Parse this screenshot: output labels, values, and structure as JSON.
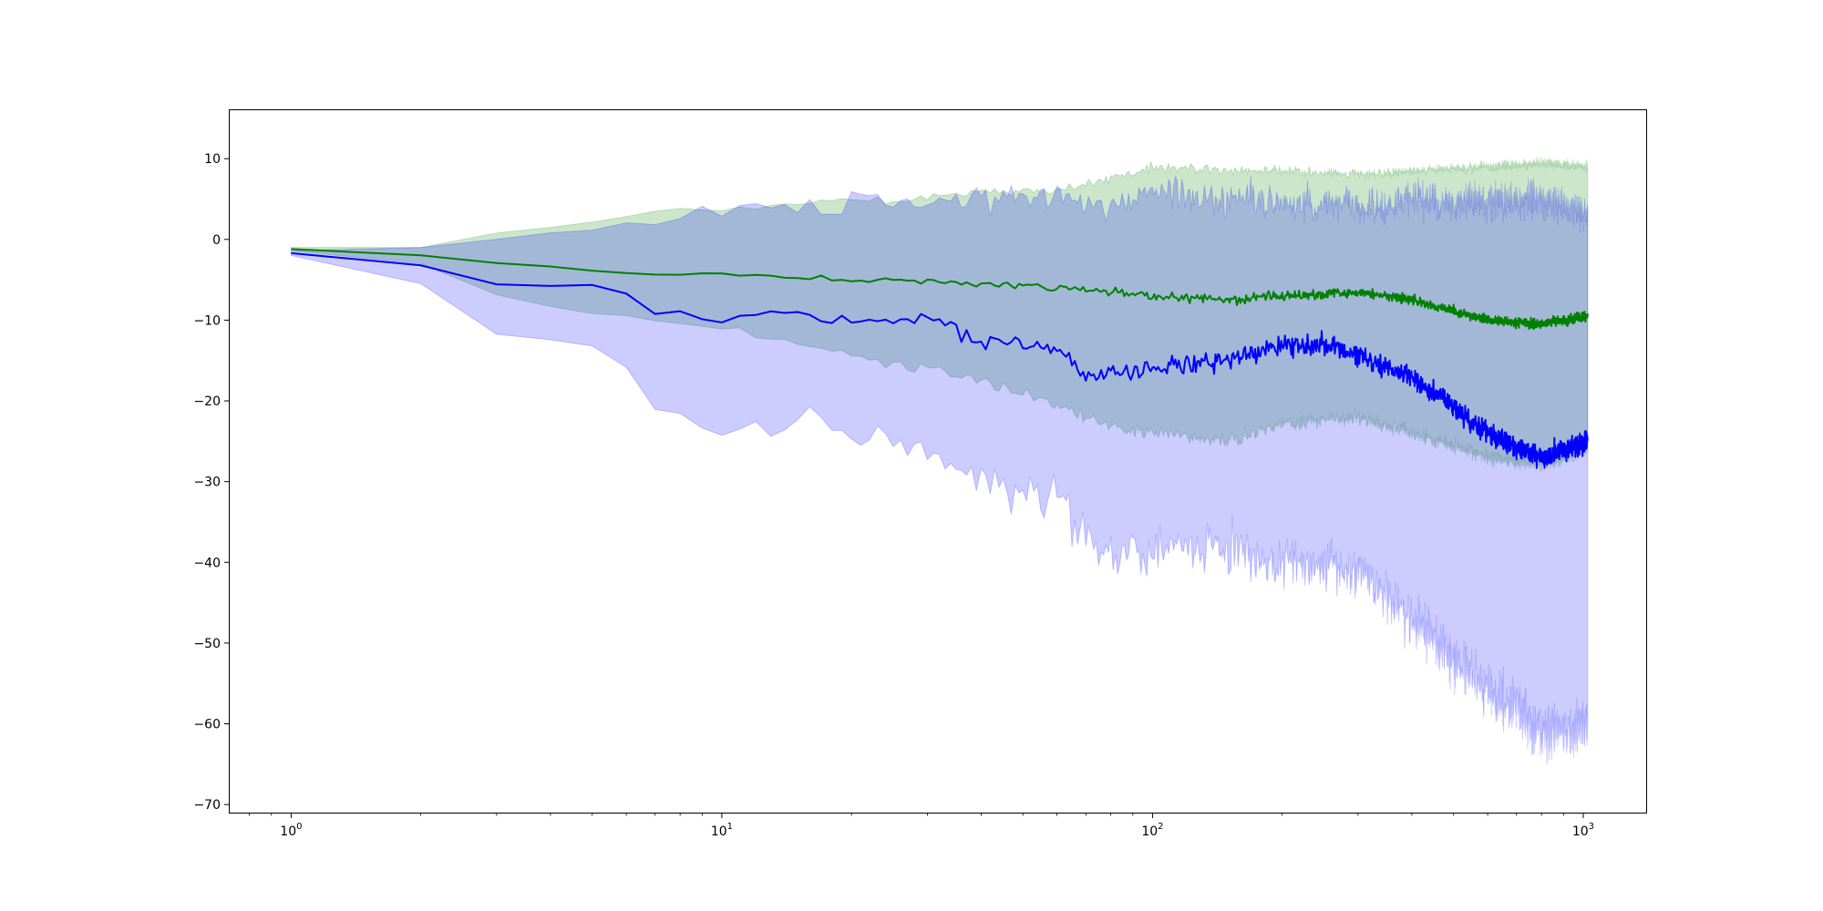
{
  "chart_data": {
    "type": "line",
    "title": "",
    "xlabel": "",
    "ylabel": "",
    "xscale": "log",
    "xlim": [
      0.72,
      1400
    ],
    "ylim": [
      -71,
      16
    ],
    "grid": false,
    "x_ticks": [
      {
        "value": 1,
        "base": "10",
        "exp": "0"
      },
      {
        "value": 10,
        "base": "10",
        "exp": "1"
      },
      {
        "value": 100,
        "base": "10",
        "exp": "2"
      },
      {
        "value": 1000,
        "base": "10",
        "exp": "3"
      }
    ],
    "y_ticks": [
      {
        "value": 10,
        "label": "10"
      },
      {
        "value": 0,
        "label": "0"
      },
      {
        "value": -10,
        "label": "−10"
      },
      {
        "value": -20,
        "label": "−20"
      },
      {
        "value": -30,
        "label": "−30"
      },
      {
        "value": -40,
        "label": "−40"
      },
      {
        "value": -50,
        "label": "−50"
      },
      {
        "value": -60,
        "label": "−60"
      },
      {
        "value": -70,
        "label": "−70"
      }
    ],
    "x_range": [
      1,
      1024
    ],
    "series": [
      {
        "color": "#008000",
        "band_color": "#008000",
        "band_opacity": 0.2,
        "mean_keypoints": [
          [
            1,
            -1.2
          ],
          [
            2,
            -2.0
          ],
          [
            3,
            -3.0
          ],
          [
            5,
            -3.9
          ],
          [
            8,
            -4.4
          ],
          [
            10,
            -4.3
          ],
          [
            15,
            -4.8
          ],
          [
            20,
            -5.0
          ],
          [
            30,
            -5.2
          ],
          [
            50,
            -5.8
          ],
          [
            80,
            -6.5
          ],
          [
            100,
            -7.0
          ],
          [
            150,
            -7.5
          ],
          [
            200,
            -7.0
          ],
          [
            300,
            -6.5
          ],
          [
            400,
            -7.5
          ],
          [
            600,
            -10.0
          ],
          [
            800,
            -10.5
          ],
          [
            1024,
            -9.5
          ]
        ],
        "upper_keypoints": [
          [
            1,
            -1.0
          ],
          [
            2,
            -1.0
          ],
          [
            3,
            0.8
          ],
          [
            5,
            2.0
          ],
          [
            7,
            3.6
          ],
          [
            10,
            3.8
          ],
          [
            15,
            4.5
          ],
          [
            20,
            4.8
          ],
          [
            30,
            5.0
          ],
          [
            40,
            6.0
          ],
          [
            60,
            6.0
          ],
          [
            80,
            7.5
          ],
          [
            100,
            9.0
          ],
          [
            150,
            8.5
          ],
          [
            200,
            8.5
          ],
          [
            300,
            8.0
          ],
          [
            400,
            8.5
          ],
          [
            600,
            9.0
          ],
          [
            800,
            9.5
          ],
          [
            1024,
            9.0
          ]
        ],
        "lower_keypoints": [
          [
            1,
            -1.4
          ],
          [
            2,
            -3.0
          ],
          [
            3,
            -7.0
          ],
          [
            5,
            -9.0
          ],
          [
            8,
            -10.5
          ],
          [
            10,
            -11.0
          ],
          [
            15,
            -13.0
          ],
          [
            20,
            -14.5
          ],
          [
            30,
            -16.0
          ],
          [
            50,
            -19.0
          ],
          [
            80,
            -23.0
          ],
          [
            100,
            -24.0
          ],
          [
            150,
            -25.0
          ],
          [
            200,
            -23.0
          ],
          [
            300,
            -22.0
          ],
          [
            400,
            -24.0
          ],
          [
            600,
            -27.0
          ],
          [
            800,
            -28.0
          ],
          [
            1024,
            -26.0
          ]
        ],
        "mean_noise": 0.9,
        "band_noise": 1.0
      },
      {
        "color": "#0000ff",
        "band_color": "#0000ff",
        "band_opacity": 0.2,
        "mean_keypoints": [
          [
            1,
            -1.7
          ],
          [
            2,
            -3.3
          ],
          [
            3,
            -5.6
          ],
          [
            4,
            -5.6
          ],
          [
            5,
            -6.0
          ],
          [
            6,
            -7.0
          ],
          [
            7,
            -8.7
          ],
          [
            9,
            -9.8
          ],
          [
            10,
            -9.8
          ],
          [
            15,
            -9.2
          ],
          [
            20,
            -10.0
          ],
          [
            30,
            -9.5
          ],
          [
            40,
            -12.5
          ],
          [
            60,
            -13.5
          ],
          [
            70,
            -17.0
          ],
          [
            100,
            -16.0
          ],
          [
            150,
            -15.0
          ],
          [
            200,
            -13.0
          ],
          [
            250,
            -13.0
          ],
          [
            300,
            -14.5
          ],
          [
            400,
            -17.0
          ],
          [
            600,
            -24.0
          ],
          [
            800,
            -27.0
          ],
          [
            1024,
            -25.0
          ]
        ],
        "upper_keypoints": [
          [
            1,
            -1.4
          ],
          [
            2,
            -1.2
          ],
          [
            3,
            0.2
          ],
          [
            5,
            1.5
          ],
          [
            8,
            3.0
          ],
          [
            10,
            3.5
          ],
          [
            15,
            4.0
          ],
          [
            20,
            4.5
          ],
          [
            30,
            4.5
          ],
          [
            40,
            5.0
          ],
          [
            60,
            5.0
          ],
          [
            80,
            4.0
          ],
          [
            100,
            6.0
          ],
          [
            150,
            5.0
          ],
          [
            200,
            5.0
          ],
          [
            300,
            4.0
          ],
          [
            400,
            5.0
          ],
          [
            600,
            4.5
          ],
          [
            800,
            5.0
          ],
          [
            1024,
            3.0
          ]
        ],
        "lower_keypoints": [
          [
            1,
            -2.0
          ],
          [
            2,
            -5.3
          ],
          [
            3,
            -11.5
          ],
          [
            4,
            -11.7
          ],
          [
            5,
            -13.5
          ],
          [
            6,
            -16.0
          ],
          [
            7,
            -20.5
          ],
          [
            8,
            -22.5
          ],
          [
            10,
            -23.5
          ],
          [
            13,
            -23.5
          ],
          [
            15,
            -21.5
          ],
          [
            20,
            -24.0
          ],
          [
            30,
            -27.0
          ],
          [
            40,
            -30.0
          ],
          [
            60,
            -32.0
          ],
          [
            70,
            -37.0
          ],
          [
            80,
            -39.0
          ],
          [
            100,
            -38.0
          ],
          [
            150,
            -38.0
          ],
          [
            200,
            -40.0
          ],
          [
            300,
            -41.0
          ],
          [
            400,
            -47.0
          ],
          [
            600,
            -56.0
          ],
          [
            800,
            -61.0
          ],
          [
            1024,
            -60.0
          ]
        ],
        "mean_noise": 2.0,
        "band_noise": 3.5
      }
    ]
  }
}
